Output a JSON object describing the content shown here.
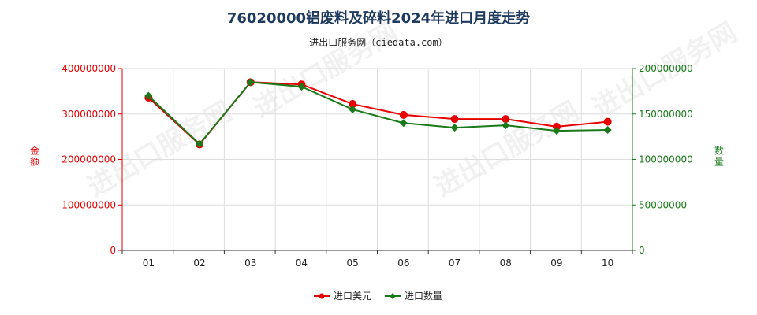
{
  "title": "76020000铝废料及碎料2024年进口月度走势",
  "subtitle": "进出口服务网（ciedata.com）",
  "watermark": "进出口服务网",
  "colors": {
    "amount": "#e60000",
    "quantity": "#1a7a1a",
    "grid": "#dddddd",
    "axis": "#333333"
  },
  "chart_data": {
    "type": "line",
    "categories": [
      "01",
      "02",
      "03",
      "04",
      "05",
      "06",
      "07",
      "08",
      "09",
      "10"
    ],
    "y_left": {
      "label": "金额",
      "ylim": [
        0,
        400000000
      ],
      "ticks": [
        0,
        100000000,
        200000000,
        300000000,
        400000000
      ]
    },
    "y_right": {
      "label": "数量",
      "ylim": [
        0,
        200000000
      ],
      "ticks": [
        0,
        50000000,
        100000000,
        150000000,
        200000000
      ]
    },
    "grid": true,
    "legend_position": "bottom",
    "series": [
      {
        "name": "进口美元",
        "axis": "left",
        "values": [
          336000000,
          233000000,
          370000000,
          365000000,
          322000000,
          298000000,
          289000000,
          289000000,
          272000000,
          283000000
        ]
      },
      {
        "name": "进口数量",
        "axis": "right",
        "values": [
          170000000,
          117000000,
          185000000,
          180000000,
          155000000,
          140000000,
          135000000,
          137500000,
          131500000,
          132500000
        ]
      }
    ]
  }
}
